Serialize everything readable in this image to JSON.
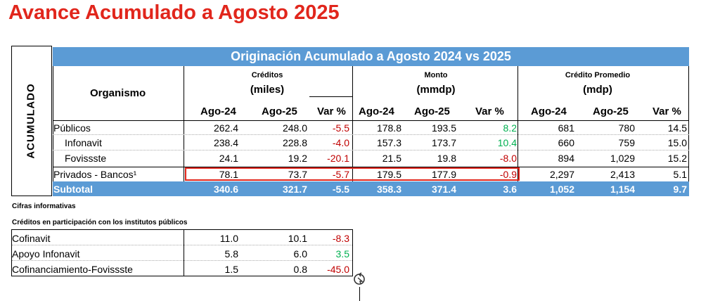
{
  "page_title": "Avance Acumulado a Agosto 2025",
  "side_label": "ACUMULADO",
  "table_title": "Originación Acumulado a Agosto 2024 vs 2025",
  "headers": {
    "organismo": "Organismo",
    "creditos": "Créditos",
    "creditos_unit": "(miles)",
    "monto": "Monto",
    "monto_unit": "(mmdp)",
    "promedio": "Crédito Promedio",
    "promedio_unit": "(mdp)",
    "cols": [
      "Ago-24",
      "Ago-25",
      "Var %",
      "Ago-24",
      "Ago-25",
      "Var %",
      "Ago-24",
      "Ago-25",
      "Var %"
    ]
  },
  "rows": [
    {
      "label": "Públicos",
      "values": [
        "262.4",
        "248.0",
        "-5.5",
        "178.8",
        "193.5",
        "8.2",
        "681",
        "780",
        "14.5"
      ]
    },
    {
      "label": "Infonavit",
      "values": [
        "238.4",
        "228.8",
        "-4.0",
        "157.3",
        "173.7",
        "10.4",
        "660",
        "759",
        "15.0"
      ]
    },
    {
      "label": "Fovissste",
      "values": [
        "24.1",
        "19.2",
        "-20.1",
        "21.5",
        "19.8",
        "-8.0",
        "894",
        "1,029",
        "15.2"
      ]
    },
    {
      "label": "Privados - Bancos¹",
      "values": [
        "78.1",
        "73.7",
        "-5.7",
        "179.5",
        "177.9",
        "-0.9",
        "2,297",
        "2,413",
        "5.1"
      ]
    }
  ],
  "subtotal": {
    "label": "Subtotal",
    "values": [
      "340.6",
      "321.7",
      "-5.5",
      "358.3",
      "371.4",
      "3.6",
      "1,052",
      "1,154",
      "9.7"
    ]
  },
  "note_informativas": "Cifras informativas",
  "note_participacion": "Créditos en participación con los institutos públicos",
  "secondary_rows": [
    {
      "label": "Cofinavit",
      "values": [
        "11.0",
        "10.1",
        "-8.3"
      ]
    },
    {
      "label": "Apoyo Infonavit",
      "values": [
        "5.8",
        "6.0",
        "3.5"
      ]
    },
    {
      "label": "Cofinanciamiento-Fovissste",
      "values": [
        "1.5",
        "0.8",
        "-45.0"
      ]
    }
  ],
  "colors": {
    "title": "#e1261c",
    "header_blue": "#5b9bd5",
    "negative": "#c00000",
    "positive": "#00b050"
  },
  "icons": {
    "refresh": "refresh-icon"
  }
}
